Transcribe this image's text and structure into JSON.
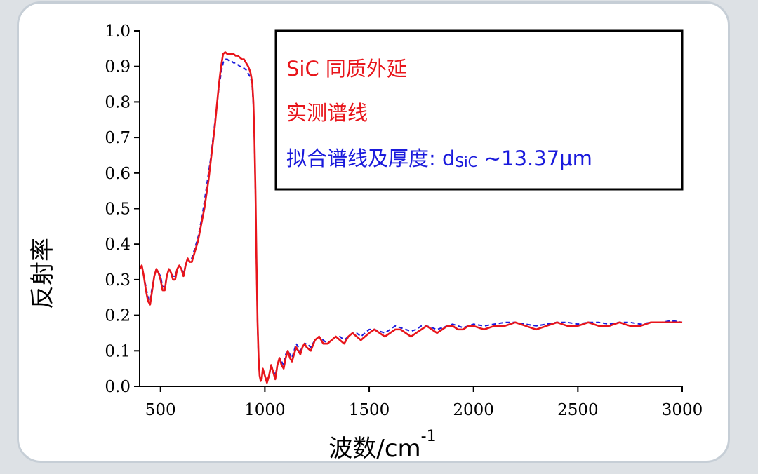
{
  "chart_data": {
    "type": "line",
    "xlabel": "波数/cm",
    "xlabel_superscript": "-1",
    "ylabel": "反射率",
    "xlim": [
      400,
      3000
    ],
    "ylim": [
      0.0,
      1.0
    ],
    "x_ticks": [
      500,
      1000,
      1500,
      2000,
      2500,
      3000
    ],
    "y_ticks": [
      "0.0",
      "0.1",
      "0.2",
      "0.3",
      "0.4",
      "0.5",
      "0.6",
      "0.7",
      "0.8",
      "0.9",
      "1.0"
    ],
    "grid": false,
    "legend_position": "top-right",
    "annotations": [
      {
        "text": "SiC 同质外延",
        "color": "#e8151b"
      },
      {
        "text": "实测谱线",
        "color": "#e8151b"
      },
      {
        "text": "拟合谱线及厚度: d",
        "subscript": "SiC",
        "suffix": " ~13.37μm",
        "color": "#1a1adc"
      }
    ],
    "series": [
      {
        "style": "solid",
        "color": "#e8151b",
        "x": [
          400,
          410,
          420,
          430,
          440,
          450,
          460,
          470,
          480,
          490,
          500,
          510,
          520,
          530,
          540,
          550,
          560,
          570,
          580,
          590,
          600,
          610,
          620,
          630,
          640,
          650,
          660,
          670,
          680,
          690,
          700,
          710,
          720,
          730,
          740,
          750,
          760,
          770,
          780,
          790,
          800,
          810,
          820,
          830,
          840,
          850,
          860,
          870,
          880,
          890,
          900,
          910,
          920,
          930,
          935,
          940,
          945,
          950,
          955,
          960,
          965,
          970,
          975,
          980,
          985,
          990,
          1000,
          1010,
          1020,
          1030,
          1040,
          1050,
          1060,
          1070,
          1080,
          1090,
          1100,
          1110,
          1120,
          1130,
          1140,
          1150,
          1160,
          1170,
          1180,
          1190,
          1200,
          1220,
          1240,
          1260,
          1280,
          1300,
          1320,
          1340,
          1360,
          1380,
          1400,
          1420,
          1440,
          1460,
          1480,
          1500,
          1525,
          1550,
          1575,
          1600,
          1625,
          1650,
          1675,
          1700,
          1725,
          1750,
          1775,
          1800,
          1825,
          1850,
          1875,
          1900,
          1925,
          1950,
          1975,
          2000,
          2050,
          2100,
          2150,
          2200,
          2250,
          2300,
          2350,
          2400,
          2450,
          2500,
          2550,
          2600,
          2650,
          2700,
          2750,
          2800,
          2850,
          2900,
          2950,
          3000
        ],
        "y": [
          0.33,
          0.34,
          0.31,
          0.27,
          0.24,
          0.23,
          0.27,
          0.31,
          0.33,
          0.32,
          0.3,
          0.27,
          0.27,
          0.31,
          0.33,
          0.32,
          0.3,
          0.3,
          0.33,
          0.34,
          0.33,
          0.31,
          0.34,
          0.36,
          0.35,
          0.35,
          0.37,
          0.39,
          0.41,
          0.44,
          0.47,
          0.5,
          0.54,
          0.58,
          0.63,
          0.68,
          0.73,
          0.79,
          0.85,
          0.9,
          0.935,
          0.94,
          0.935,
          0.935,
          0.935,
          0.935,
          0.93,
          0.93,
          0.925,
          0.92,
          0.92,
          0.91,
          0.9,
          0.885,
          0.87,
          0.85,
          0.8,
          0.7,
          0.55,
          0.35,
          0.18,
          0.08,
          0.03,
          0.015,
          0.02,
          0.05,
          0.03,
          0.01,
          0.03,
          0.06,
          0.04,
          0.02,
          0.06,
          0.08,
          0.06,
          0.05,
          0.08,
          0.1,
          0.08,
          0.07,
          0.09,
          0.11,
          0.1,
          0.09,
          0.11,
          0.12,
          0.11,
          0.1,
          0.13,
          0.14,
          0.12,
          0.12,
          0.13,
          0.14,
          0.13,
          0.12,
          0.14,
          0.15,
          0.14,
          0.13,
          0.14,
          0.15,
          0.16,
          0.15,
          0.14,
          0.15,
          0.16,
          0.16,
          0.15,
          0.14,
          0.15,
          0.16,
          0.17,
          0.16,
          0.15,
          0.16,
          0.17,
          0.17,
          0.16,
          0.16,
          0.17,
          0.17,
          0.16,
          0.17,
          0.17,
          0.18,
          0.17,
          0.16,
          0.17,
          0.18,
          0.17,
          0.17,
          0.18,
          0.17,
          0.17,
          0.18,
          0.17,
          0.17,
          0.18,
          0.18,
          0.18,
          0.18
        ]
      },
      {
        "style": "dashed",
        "color": "#1a1adc",
        "x": [
          400,
          410,
          420,
          430,
          440,
          450,
          460,
          470,
          480,
          490,
          500,
          510,
          520,
          530,
          540,
          550,
          560,
          570,
          580,
          590,
          600,
          610,
          620,
          630,
          640,
          650,
          660,
          670,
          680,
          690,
          700,
          710,
          720,
          730,
          740,
          750,
          760,
          770,
          780,
          790,
          800,
          810,
          820,
          830,
          840,
          850,
          860,
          870,
          880,
          890,
          900,
          910,
          920,
          930,
          935,
          940,
          945,
          950,
          955,
          960,
          965,
          970,
          975,
          980,
          985,
          990,
          1000,
          1010,
          1020,
          1030,
          1040,
          1050,
          1060,
          1070,
          1080,
          1090,
          1100,
          1110,
          1120,
          1130,
          1140,
          1150,
          1160,
          1170,
          1180,
          1190,
          1200,
          1220,
          1240,
          1260,
          1280,
          1300,
          1320,
          1340,
          1360,
          1380,
          1400,
          1420,
          1440,
          1460,
          1480,
          1500,
          1525,
          1550,
          1575,
          1600,
          1625,
          1650,
          1675,
          1700,
          1725,
          1750,
          1775,
          1800,
          1825,
          1850,
          1875,
          1900,
          1925,
          1950,
          1975,
          2000,
          2050,
          2100,
          2150,
          2200,
          2250,
          2300,
          2350,
          2400,
          2450,
          2500,
          2550,
          2600,
          2650,
          2700,
          2750,
          2800,
          2850,
          2900,
          2950,
          3000
        ],
        "y": [
          0.33,
          0.34,
          0.31,
          0.28,
          0.25,
          0.24,
          0.28,
          0.31,
          0.33,
          0.32,
          0.31,
          0.28,
          0.28,
          0.31,
          0.33,
          0.32,
          0.31,
          0.31,
          0.33,
          0.34,
          0.33,
          0.32,
          0.34,
          0.36,
          0.36,
          0.36,
          0.38,
          0.4,
          0.42,
          0.45,
          0.48,
          0.52,
          0.56,
          0.6,
          0.64,
          0.69,
          0.74,
          0.79,
          0.84,
          0.88,
          0.91,
          0.92,
          0.92,
          0.915,
          0.915,
          0.91,
          0.91,
          0.905,
          0.9,
          0.9,
          0.895,
          0.89,
          0.88,
          0.87,
          0.86,
          0.84,
          0.79,
          0.69,
          0.54,
          0.34,
          0.17,
          0.07,
          0.03,
          0.015,
          0.02,
          0.05,
          0.03,
          0.015,
          0.03,
          0.06,
          0.045,
          0.03,
          0.06,
          0.08,
          0.07,
          0.06,
          0.09,
          0.1,
          0.09,
          0.08,
          0.1,
          0.12,
          0.11,
          0.1,
          0.11,
          0.12,
          0.12,
          0.11,
          0.13,
          0.14,
          0.13,
          0.12,
          0.13,
          0.14,
          0.14,
          0.13,
          0.14,
          0.15,
          0.15,
          0.14,
          0.15,
          0.16,
          0.16,
          0.155,
          0.15,
          0.16,
          0.17,
          0.165,
          0.16,
          0.155,
          0.16,
          0.17,
          0.17,
          0.165,
          0.16,
          0.165,
          0.17,
          0.175,
          0.17,
          0.165,
          0.17,
          0.175,
          0.17,
          0.175,
          0.18,
          0.18,
          0.175,
          0.17,
          0.175,
          0.18,
          0.18,
          0.175,
          0.18,
          0.18,
          0.175,
          0.18,
          0.18,
          0.175,
          0.18,
          0.18,
          0.185,
          0.18
        ]
      }
    ]
  }
}
